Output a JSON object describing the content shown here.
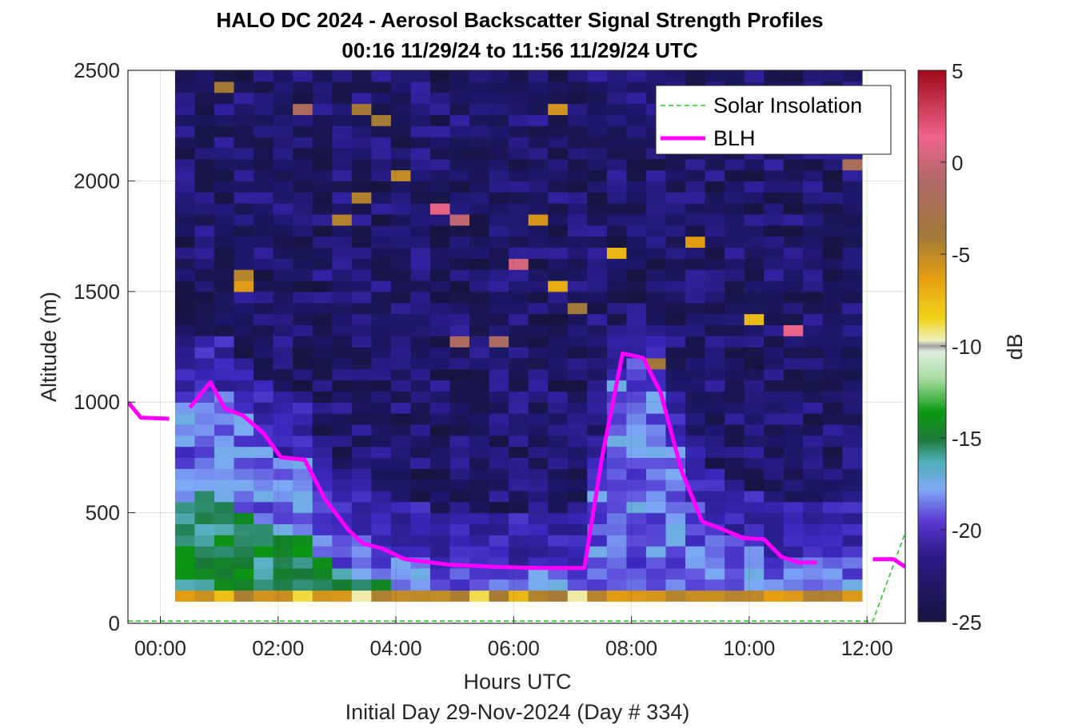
{
  "chart_data": {
    "type": "heatmap",
    "title": "HALO DC 2024 - Aerosol Backscatter Signal Strength Profiles",
    "subtitle": "00:16 11/29/24 to 11:56 11/29/24  UTC",
    "xlabel": "Hours UTC",
    "xlabel2": "Initial Day 29-Nov-2024 (Day # 334)",
    "ylabel": "Altitude (m)",
    "xlim": [
      -0.55,
      12.65
    ],
    "ylim": [
      0,
      2500
    ],
    "x_ticks": [
      0,
      2,
      4,
      6,
      8,
      10,
      12
    ],
    "x_tick_labels": [
      "00:00",
      "02:00",
      "04:00",
      "06:00",
      "08:00",
      "10:00",
      "12:00"
    ],
    "y_ticks": [
      0,
      500,
      1000,
      1500,
      2000,
      2500
    ],
    "y_tick_labels": [
      "0",
      "500",
      "1000",
      "1500",
      "2000",
      "2500"
    ],
    "grid": true,
    "colorbar": {
      "label": "dB",
      "range": [
        -25,
        5
      ],
      "ticks": [
        5,
        0,
        -5,
        -10,
        -15,
        -20,
        -25
      ],
      "tick_labels": [
        "5",
        "0",
        "-5",
        "-10",
        "-15",
        "-20",
        "-25"
      ]
    },
    "heatmap_grid": {
      "time_start_hr": 0.25,
      "time_step_hr": 0.3333,
      "n_time": 35,
      "alt_start_m": 100,
      "alt_step_m": 50,
      "n_alt": 48
    },
    "cells_note": "Estimated backscatter values (dB) per profile; bottom row at ~100 m is strong (-6 to -3 dB).",
    "legend": {
      "position": "top-right",
      "entries": [
        {
          "name": "Solar Insolation",
          "color": "#22cc22",
          "style": "dashed"
        },
        {
          "name": "BLH",
          "color": "#ff00ff",
          "style": "solid"
        }
      ]
    },
    "series": [
      {
        "name": "BLH",
        "segments": [
          {
            "x": [
              -0.55,
              -0.33,
              0.15
            ],
            "y": [
              1000,
              930,
              925
            ]
          },
          {
            "x": [
              0.5,
              0.85,
              1.1,
              1.4,
              1.75,
              2.05,
              2.45,
              2.8,
              3.2,
              3.45,
              3.75,
              4.15,
              4.9,
              5.7,
              6.4,
              6.95,
              7.2,
              7.5,
              7.85,
              8.2,
              8.5,
              8.85,
              9.2,
              9.55,
              9.9,
              10.25,
              10.55,
              10.85,
              11.15
            ],
            "y": [
              975,
              1090,
              970,
              940,
              860,
              750,
              740,
              560,
              420,
              360,
              340,
              290,
              265,
              255,
              250,
              250,
              250,
              750,
              1220,
              1200,
              1040,
              690,
              460,
              425,
              385,
              380,
              300,
              275,
              275
            ]
          },
          {
            "x": [
              12.1,
              12.45,
              12.65
            ],
            "y": [
              290,
              290,
              255
            ]
          }
        ]
      },
      {
        "name": "Solar Insolation",
        "x": [
          -0.55,
          12.1,
          12.65
        ],
        "y": [
          10,
          10,
          410
        ]
      }
    ]
  }
}
